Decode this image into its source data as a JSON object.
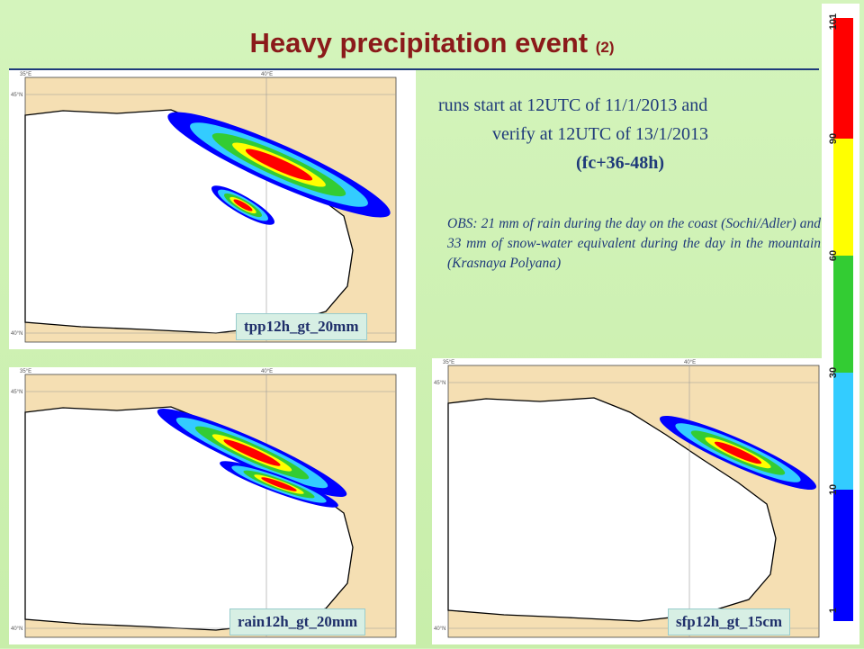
{
  "title": {
    "main": "Heavy precipitation event",
    "number": "(2)"
  },
  "runs": {
    "line1": "runs start at 12UTC of  11/1/2013 and",
    "line2": "verify at 12UTC of 13/1/2013",
    "line3": "(fc+36-48h)"
  },
  "obs": "OBS: 21 mm of rain during the day on the coast (Sochi/Adler) and 33 mm of snow-water equivalent during the day in the mountain (Krasnaya Polyana)",
  "maps": [
    {
      "label": "tpp12h_gt_20mm",
      "lon_labels": [
        "35°E",
        "40°E"
      ],
      "lat_labels": [
        "45°N",
        "40°N"
      ]
    },
    {
      "label": "rain12h_gt_20mm",
      "lon_labels": [
        "35°E",
        "40°E"
      ],
      "lat_labels": [
        "45°N",
        "40°N"
      ]
    },
    {
      "label": "sfp12h_gt_15cm",
      "lon_labels": [
        "35°E",
        "40°E"
      ],
      "lat_labels": [
        "45°N",
        "40°N"
      ]
    }
  ],
  "colorbar": {
    "labels": [
      "101",
      "90",
      "60",
      "30",
      "10",
      "1"
    ]
  }
}
